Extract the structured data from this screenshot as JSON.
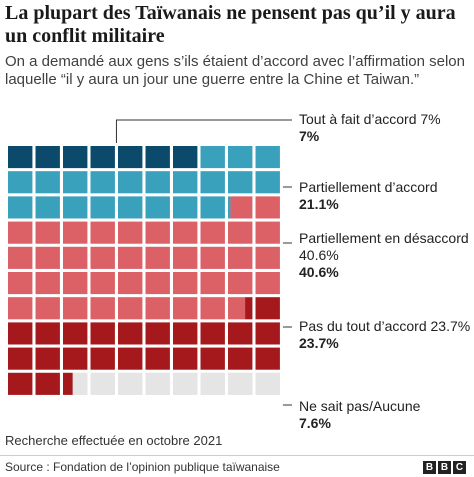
{
  "title": "La plupart des Taïwanais ne pensent pas qu’il y aura un conflit militaire",
  "subtitle": "On a demandé aux gens s’ils étaient d’accord avec l’affirmation selon laquelle “il y aura un jour une guerre entre la Chine et Taiwan.”",
  "note": "Recherche effectuée en octobre 2021",
  "source": "Source : Fondation de l’opinion publique taïwanaise",
  "logo": [
    "B",
    "B",
    "C"
  ],
  "chart_data": {
    "type": "waffle",
    "title": "La plupart des Taïwanais ne pensent pas qu’il y aura un conflit militaire",
    "rows": 10,
    "cols": 10,
    "series": [
      {
        "name": "Tout à fait d’accord 7%",
        "value_label": "7%",
        "value": 7,
        "color": "#0b4a6b"
      },
      {
        "name": "Partiellement d’accord",
        "value_label": "21.1%",
        "value": 21.1,
        "color": "#3aa1bd"
      },
      {
        "name": "Partiellement en désaccord 40.6%",
        "value_label": "40.6%",
        "value": 40.6,
        "color": "#dc6166"
      },
      {
        "name": "Pas du tout d’accord 23.7%",
        "value_label": "23.7%",
        "value": 23.7,
        "color": "#a5191d"
      },
      {
        "name": "Ne sait pas/Aucune",
        "value_label": "7.6%",
        "value": 7.6,
        "color": "#e5e5e5"
      }
    ]
  }
}
